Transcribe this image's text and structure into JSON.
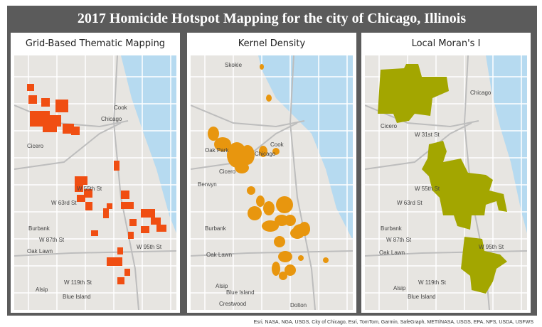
{
  "title": "2017 Homicide Hotspot Mapping for the city of Chicago, Illinois",
  "panels": [
    {
      "title": "Grid-Based Thematic Mapping",
      "labels": [
        "Chicago",
        "Cicero",
        "Burbank",
        "Oak Lawn",
        "Alsip",
        "Blue Island",
        "W 55th St",
        "W 63rd St",
        "W 87th St",
        "W 95th St",
        "W 119th St",
        "Cook"
      ]
    },
    {
      "title": "Kernel Density",
      "labels": [
        "Skokie",
        "Oak Park",
        "Chicago",
        "Cicero",
        "Berwyn",
        "Burbank",
        "Oak Lawn",
        "Alsip",
        "Blue Island",
        "Crestwood",
        "Dolton",
        "Cook"
      ]
    },
    {
      "title": "Local Moran's I",
      "labels": [
        "Chicago",
        "Cicero",
        "Burbank",
        "Oak Lawn",
        "Alsip",
        "Blue Island",
        "W 55th St",
        "W 63rd St",
        "W 87th St",
        "W 95th St",
        "W 119th St",
        "W 31st St"
      ]
    }
  ],
  "attribution": "Esri, NASA, NGA, USGS, City of Chicago, Esri, TomTom, Garmin, SafeGraph, METI/NASA, USGS, EPA, NPS, USDA, USFWS"
}
